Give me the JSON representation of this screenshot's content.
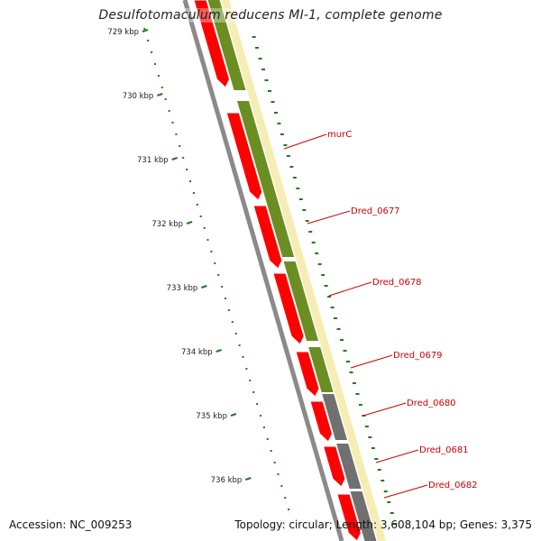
{
  "title": "Desulfotomaculum reducens MI-1, complete genome",
  "accession": "Accession: NC_009253",
  "summary": "Topology: circular; Length: 3,608,104 bp; Genes: 3,375",
  "colors": {
    "cds_forward": "#ff0000",
    "cds_track": "#6b8e23",
    "cds_other": "#707070",
    "backbone": "#8a8a8a",
    "gene_label": "#cc0000",
    "tick": "#1f7a1f",
    "top_track": "#f2e9a0"
  },
  "ticks": [
    {
      "label": "729 kbp"
    },
    {
      "label": "730 kbp"
    },
    {
      "label": "731 kbp"
    },
    {
      "label": "732 kbp"
    },
    {
      "label": "733 kbp"
    },
    {
      "label": "734 kbp"
    },
    {
      "label": "735 kbp"
    },
    {
      "label": "736 kbp"
    }
  ],
  "genes": [
    {
      "label": "murC"
    },
    {
      "label": "Dred_0677"
    },
    {
      "label": "Dred_0678"
    },
    {
      "label": "Dred_0679"
    },
    {
      "label": "Dred_0680"
    },
    {
      "label": "Dred_0681"
    },
    {
      "label": "Dred_0682"
    }
  ]
}
